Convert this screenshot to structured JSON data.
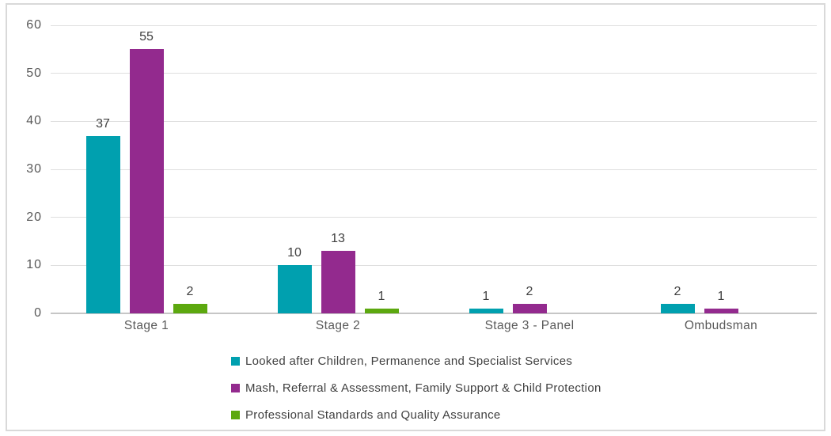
{
  "frame": {
    "background": "#FFFFFF",
    "border_color": "#D9D9D9"
  },
  "chart_data": {
    "type": "bar",
    "categories": [
      "Stage 1",
      "Stage 2",
      "Stage 3 - Panel",
      "Ombudsman"
    ],
    "series": [
      {
        "name": "Looked after Children, Permanence and Specialist Services",
        "color": "#00A0AF",
        "values": [
          37,
          10,
          1,
          2
        ]
      },
      {
        "name": "Mash, Referral & Assessment, Family Support & Child Protection",
        "color": "#932A8E",
        "values": [
          55,
          13,
          2,
          1
        ]
      },
      {
        "name": "Professional Standards and Quality Assurance",
        "color": "#5CA80F",
        "values": [
          2,
          1,
          0,
          0
        ]
      }
    ],
    "ylim": [
      0,
      60
    ],
    "yticks": [
      0,
      10,
      20,
      30,
      40,
      50,
      60
    ],
    "grid": true,
    "show_value_labels": true,
    "value_label_format": "integer",
    "legend_position": "bottom",
    "gridline_color": "#DEDEDE",
    "axisline_color": "#C6C6C6",
    "tick_label_color": "#595959",
    "value_label_color": "#404040",
    "legend_text_color": "#404040"
  }
}
